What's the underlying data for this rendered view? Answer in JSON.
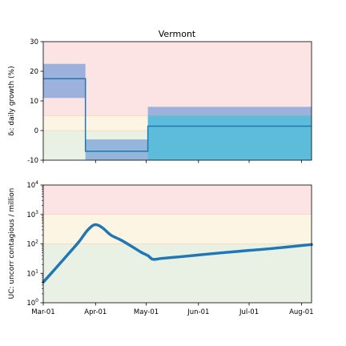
{
  "chart_data": [
    {
      "type": "line",
      "title": "Vermont",
      "ylabel": "δᵢ: daily growth (%)",
      "xlim": [
        "2020-03-01",
        "2020-08-07"
      ],
      "ylim": [
        -10,
        30
      ],
      "yticks": [
        -10,
        0,
        10,
        20,
        30
      ],
      "bands": [
        {
          "name": "red",
          "from": 5,
          "to": 30,
          "color": "#fde4e4"
        },
        {
          "name": "yellow",
          "from": 0,
          "to": 5,
          "color": "#fdf5e4"
        },
        {
          "name": "green",
          "from": -10,
          "to": 0,
          "color": "#e8f1e4"
        }
      ],
      "band_line_color": "#f5c9a0",
      "ci_color": "#5b8fd6",
      "ci_color2": "#56bcd8",
      "line_color": "#1f77b4",
      "segments": [
        {
          "start": "2020-03-01",
          "end": "2020-03-26",
          "value": 17.5,
          "lo": 11,
          "hi": 22.5
        },
        {
          "start": "2020-03-26",
          "end": "2020-05-02",
          "value": -7,
          "lo": -10,
          "hi": -3
        },
        {
          "start": "2020-05-02",
          "end": "2020-08-07",
          "value": 1.5,
          "lo": -10,
          "hi": 8,
          "lo2": -10,
          "hi2": 5
        }
      ]
    },
    {
      "type": "line",
      "title": "",
      "ylabel": "UC: uncorr contagious / million",
      "yscale": "log",
      "xlim": [
        "2020-03-01",
        "2020-08-07"
      ],
      "ylim": [
        1,
        10000
      ],
      "yticks": [
        {
          "value": 1,
          "base": "10",
          "exp": "0"
        },
        {
          "value": 10,
          "base": "10",
          "exp": "1"
        },
        {
          "value": 100,
          "base": "10",
          "exp": "2"
        },
        {
          "value": 1000,
          "base": "10",
          "exp": "3"
        },
        {
          "value": 10000,
          "base": "10",
          "exp": "4"
        }
      ],
      "bands": [
        {
          "name": "red",
          "from": 1000,
          "to": 10000,
          "color": "#fde4e4"
        },
        {
          "name": "yellow",
          "from": 100,
          "to": 1000,
          "color": "#fdf5e4"
        },
        {
          "name": "green",
          "from": 1,
          "to": 100,
          "color": "#e8f1e4"
        }
      ],
      "band_line_color": "#f5c9a0",
      "line_color": "#1f77b4",
      "series": [
        {
          "x": [
            "2020-03-01",
            "2020-03-08",
            "2020-03-15",
            "2020-03-22",
            "2020-03-27",
            "2020-03-31",
            "2020-04-03",
            "2020-04-06",
            "2020-04-10",
            "2020-04-16",
            "2020-04-22",
            "2020-04-28",
            "2020-05-02",
            "2020-05-05",
            "2020-05-10",
            "2020-05-20",
            "2020-06-01",
            "2020-06-15",
            "2020-07-01",
            "2020-07-15",
            "2020-08-07"
          ],
          "y": [
            5,
            14,
            40,
            115,
            280,
            440,
            420,
            320,
            200,
            135,
            85,
            52,
            40,
            30,
            32,
            36,
            42,
            50,
            60,
            70,
            95
          ]
        }
      ]
    }
  ],
  "x_axis": {
    "ticks": [
      {
        "date": "2020-03-01",
        "label": "Mar-01"
      },
      {
        "date": "2020-04-01",
        "label": "Apr-01"
      },
      {
        "date": "2020-05-01",
        "label": "May-01"
      },
      {
        "date": "2020-06-01",
        "label": "Jun-01"
      },
      {
        "date": "2020-07-01",
        "label": "Jul-01"
      },
      {
        "date": "2020-08-01",
        "label": "Aug-01"
      }
    ]
  }
}
